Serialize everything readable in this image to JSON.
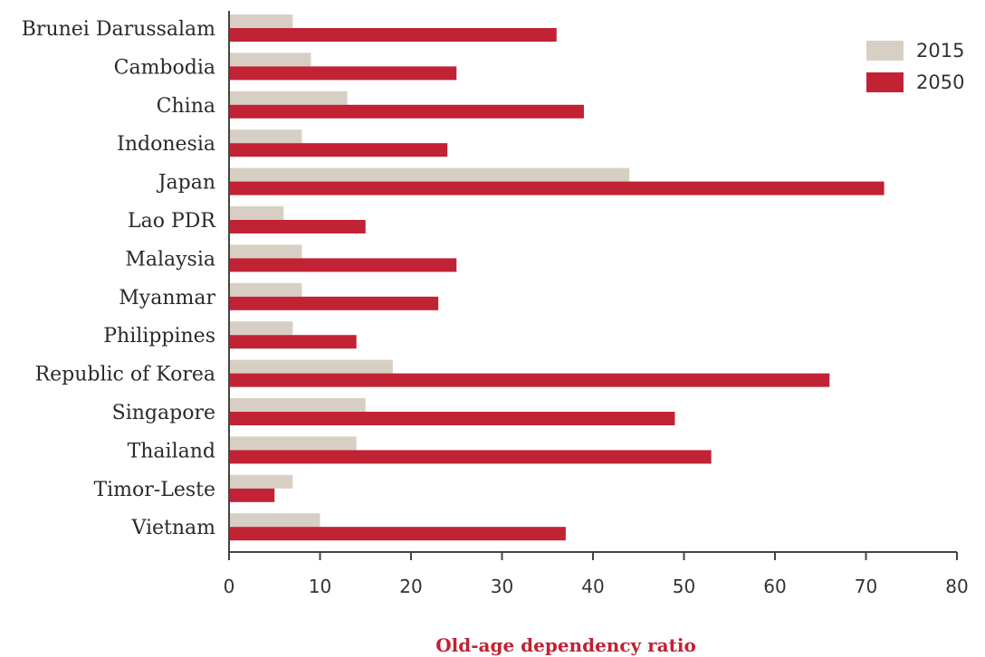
{
  "chart_data": {
    "type": "bar",
    "orientation": "horizontal",
    "categories": [
      "Brunei Darussalam",
      "Cambodia",
      "China",
      "Indonesia",
      "Japan",
      "Lao PDR",
      "Malaysia",
      "Myanmar",
      "Philippines",
      "Republic of Korea",
      "Singapore",
      "Thailand",
      "Timor-Leste",
      "Vietnam"
    ],
    "series": [
      {
        "name": "2015",
        "color": "#d8cfc4",
        "values": [
          7,
          9,
          13,
          8,
          44,
          6,
          8,
          8,
          7,
          18,
          15,
          14,
          7,
          10
        ]
      },
      {
        "name": "2050",
        "color": "#c12234",
        "values": [
          36,
          25,
          39,
          24,
          72,
          15,
          25,
          23,
          14,
          66,
          49,
          53,
          5,
          37
        ]
      }
    ],
    "xlabel": "Old-age dependency ratio",
    "xlabel_color": "#c12234",
    "xlim": [
      0,
      80
    ],
    "xticks": [
      0,
      10,
      20,
      30,
      40,
      50,
      60,
      70,
      80
    ],
    "grid": false,
    "legend_position": "top-right"
  }
}
